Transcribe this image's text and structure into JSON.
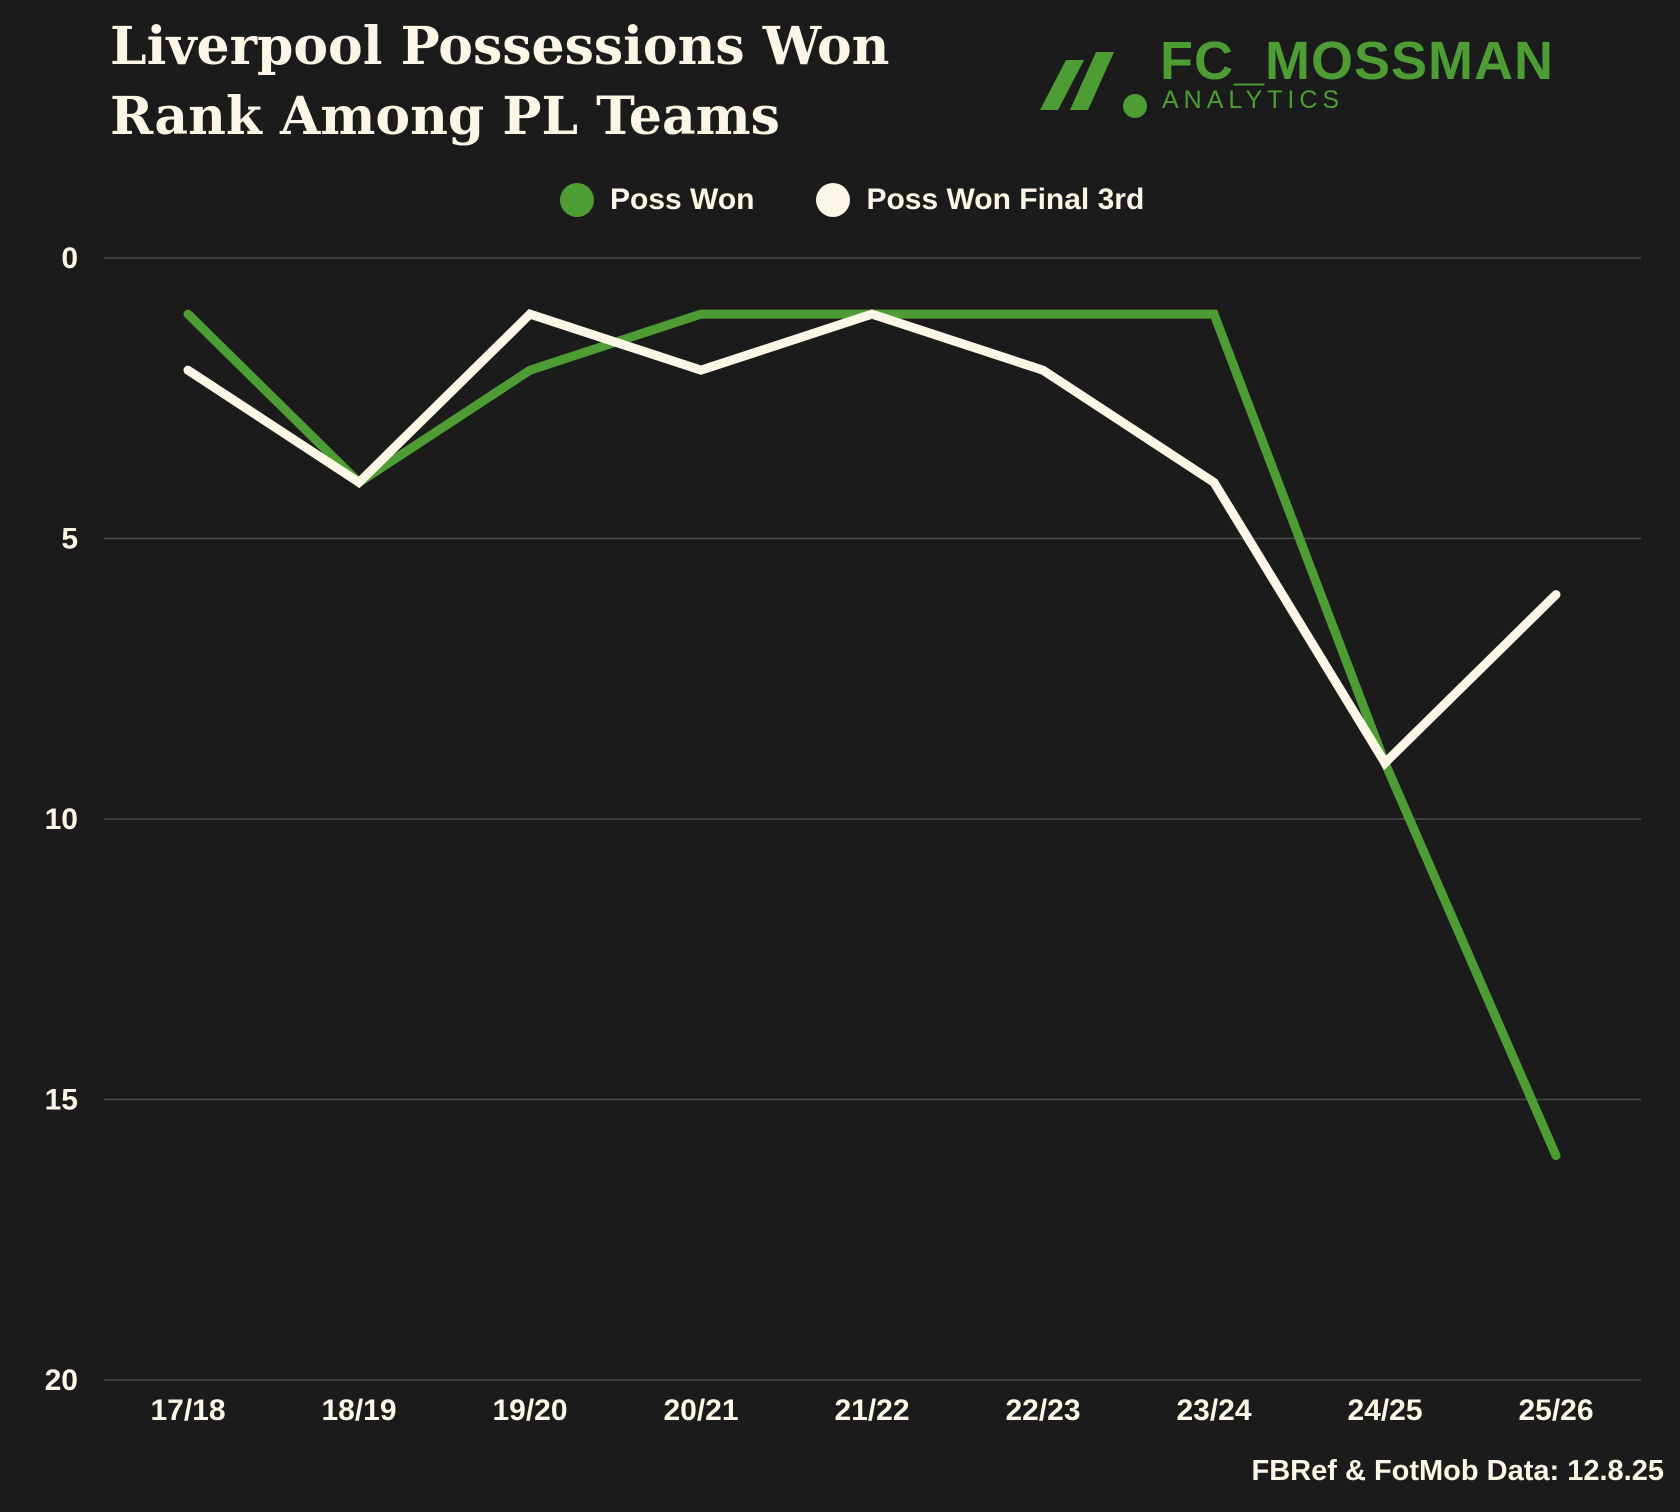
{
  "title_lines": [
    "Liverpool Possessions Won",
    "Rank Among PL Teams"
  ],
  "brand": {
    "name": "FC_MOSSMAN",
    "sub": "ANALYTICS",
    "color": "#4e9c34"
  },
  "source": "FBRef & FotMob Data: 12.8.25",
  "chart_data": {
    "type": "line",
    "title": "Liverpool Possessions Won Rank Among PL Teams",
    "xlabel": "",
    "ylabel": "",
    "categories": [
      "17/18",
      "18/19",
      "19/20",
      "20/21",
      "21/22",
      "22/23",
      "23/24",
      "24/25",
      "25/26"
    ],
    "series": [
      {
        "name": "Poss Won",
        "color": "#4e9c34",
        "values": [
          1,
          4,
          2,
          1,
          1,
          1,
          1,
          9,
          16
        ]
      },
      {
        "name": "Poss Won Final 3rd",
        "color": "#fbf6e6",
        "values": [
          2,
          4,
          1,
          2,
          1,
          2,
          4,
          9,
          6
        ]
      }
    ],
    "ylim": [
      0,
      20
    ],
    "y_inverted": true,
    "yticks": [
      0,
      5,
      10,
      15,
      20
    ],
    "grid": "horizontal",
    "legend_position": "top-center"
  }
}
